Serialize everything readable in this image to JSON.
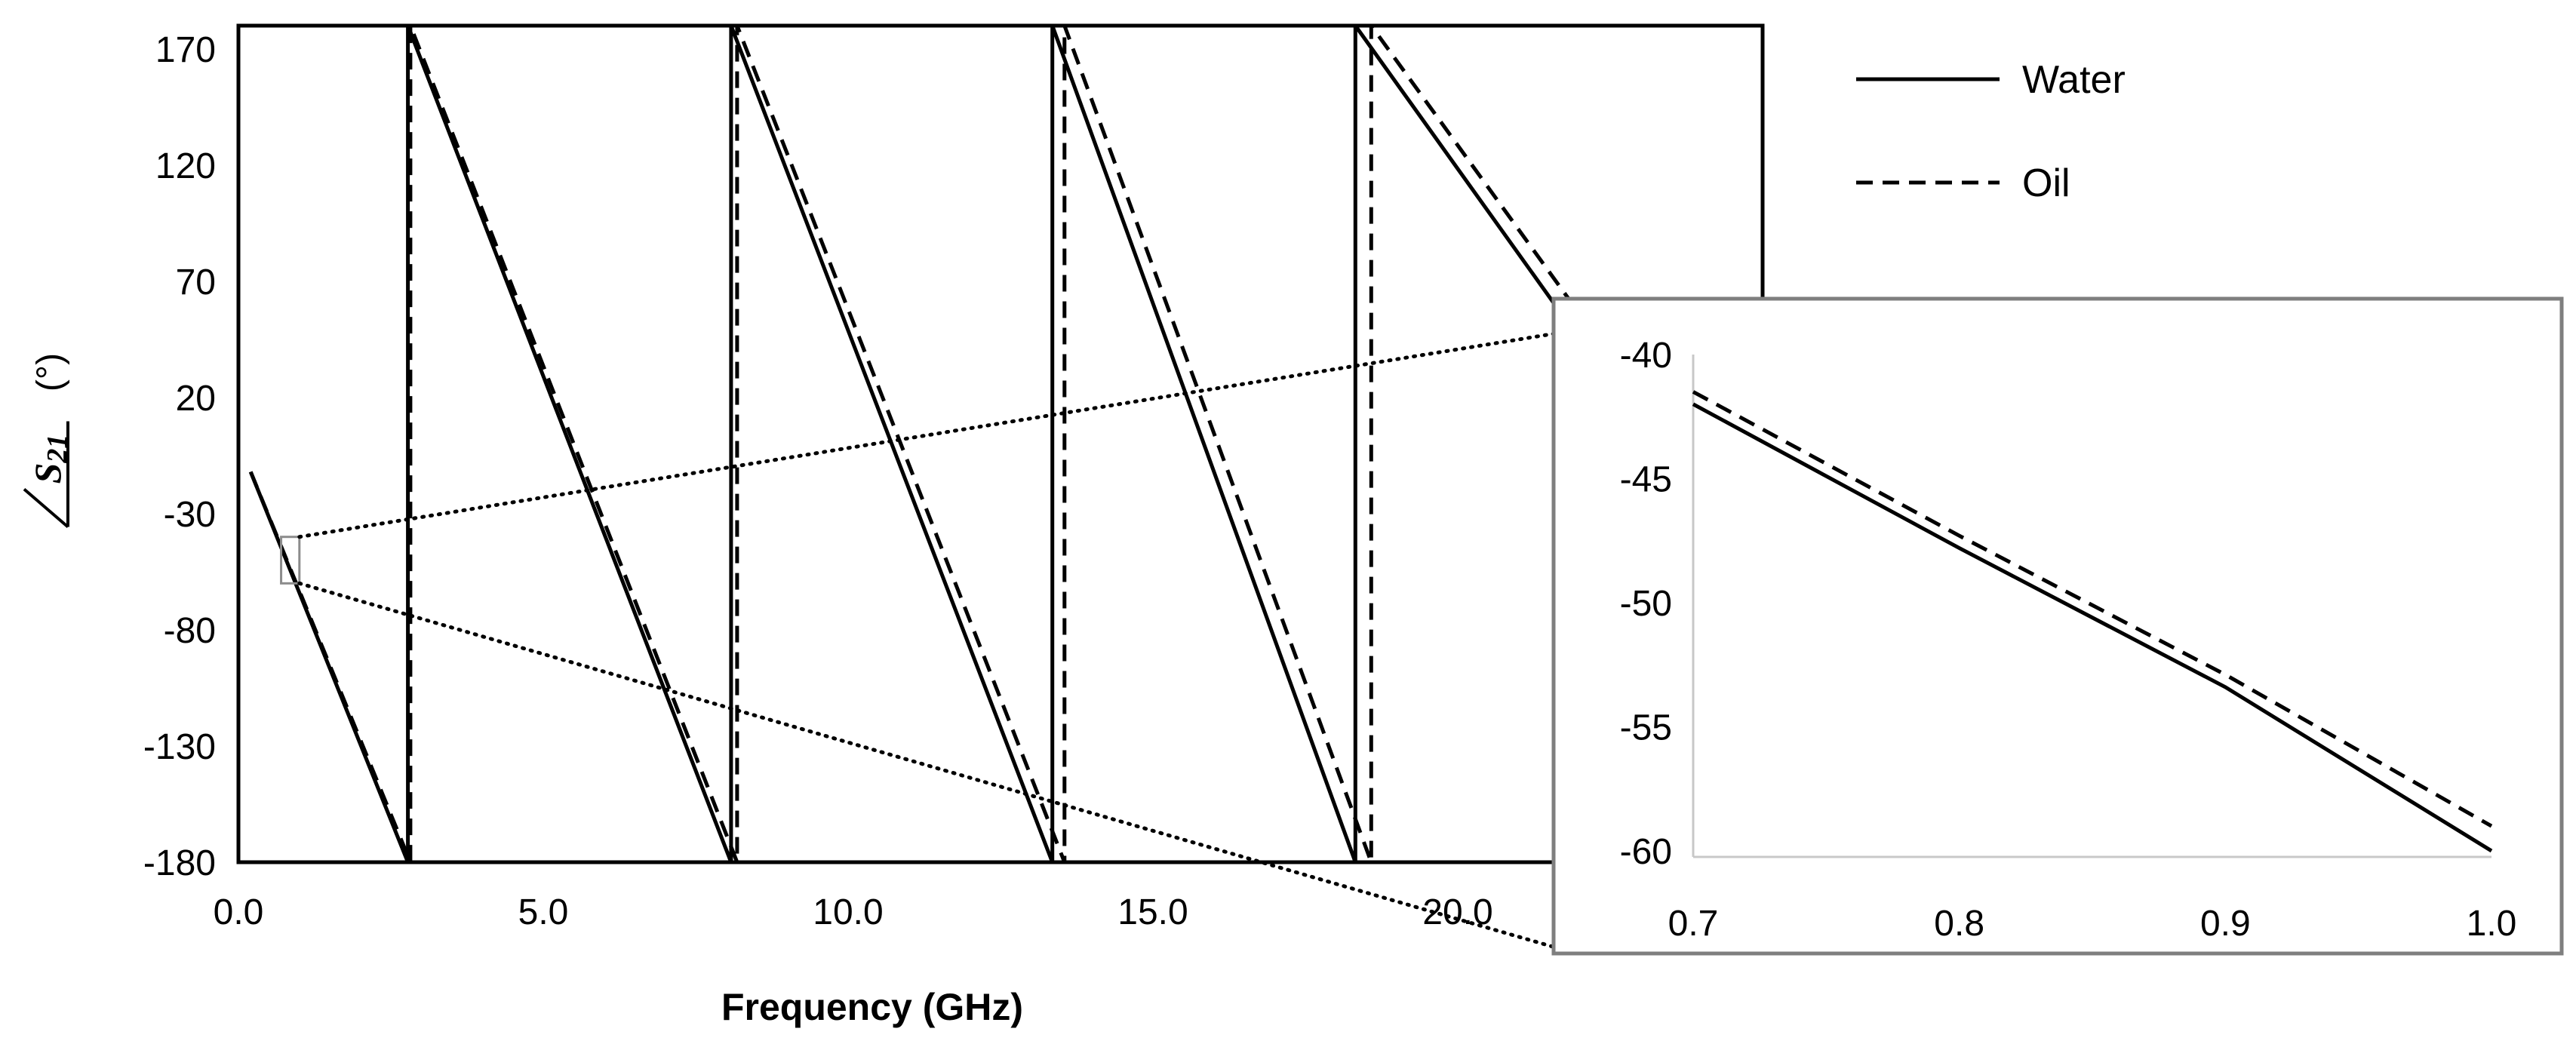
{
  "chart_data": [
    {
      "type": "line",
      "title": "",
      "xlabel": "Frequency (GHz)",
      "ylabel_main": "S",
      "ylabel_sub": "21",
      "ylabel_unit": "(°)",
      "xlim": [
        0,
        25
      ],
      "ylim": [
        -180,
        180
      ],
      "xticks": [
        0,
        5,
        10,
        15,
        20
      ],
      "xtick_labels": [
        "0.0",
        "5.0",
        "10.0",
        "15.0",
        "20.0"
      ],
      "yticks": [
        170,
        120,
        70,
        20,
        -30,
        -80,
        -130,
        -180
      ],
      "ytick_labels": [
        "170",
        "120",
        "70",
        "20",
        "-30",
        "-80",
        "-130",
        "-180"
      ],
      "legend": {
        "position": "top-right",
        "entries": [
          "Water",
          "Oil"
        ]
      },
      "series": [
        {
          "name": "Water",
          "style": "solid",
          "x": [
            0.2,
            2.78,
            2.78,
            8.08,
            8.08,
            13.35,
            13.35,
            18.32,
            18.32,
            22.0
          ],
          "y": [
            -12,
            -180,
            180,
            -180,
            180,
            -180,
            180,
            -180,
            180,
            45
          ]
        },
        {
          "name": "Oil",
          "style": "dashed",
          "x": [
            0.2,
            2.82,
            2.82,
            8.18,
            8.18,
            13.55,
            13.55,
            18.58,
            18.58,
            22.3
          ],
          "y": [
            -12,
            -180,
            180,
            -180,
            180,
            -180,
            180,
            -180,
            180,
            45
          ]
        }
      ]
    },
    {
      "type": "line",
      "title": "",
      "xlabel": "",
      "ylabel": "",
      "xlim": [
        0.7,
        1.0
      ],
      "ylim": [
        -60,
        -40
      ],
      "xticks": [
        0.7,
        0.8,
        0.9,
        1.0
      ],
      "xtick_labels": [
        "0.7",
        "0.8",
        "0.9",
        "1.0"
      ],
      "yticks": [
        -40,
        -45,
        -50,
        -55,
        -60
      ],
      "ytick_labels": [
        "-40",
        "-45",
        "-50",
        "-55",
        "-60"
      ],
      "zoom_region": {
        "x": [
          0.7,
          1.0
        ],
        "y": [
          -60,
          -40
        ]
      },
      "series": [
        {
          "name": "Water",
          "style": "solid",
          "x": [
            0.7,
            0.8,
            0.9,
            1.0
          ],
          "y": [
            -42.0,
            -47.8,
            -53.4,
            -60.0
          ]
        },
        {
          "name": "Oil",
          "style": "dashed",
          "x": [
            0.7,
            0.8,
            0.9,
            1.0
          ],
          "y": [
            -41.5,
            -47.3,
            -52.9,
            -59.0
          ]
        }
      ]
    }
  ]
}
